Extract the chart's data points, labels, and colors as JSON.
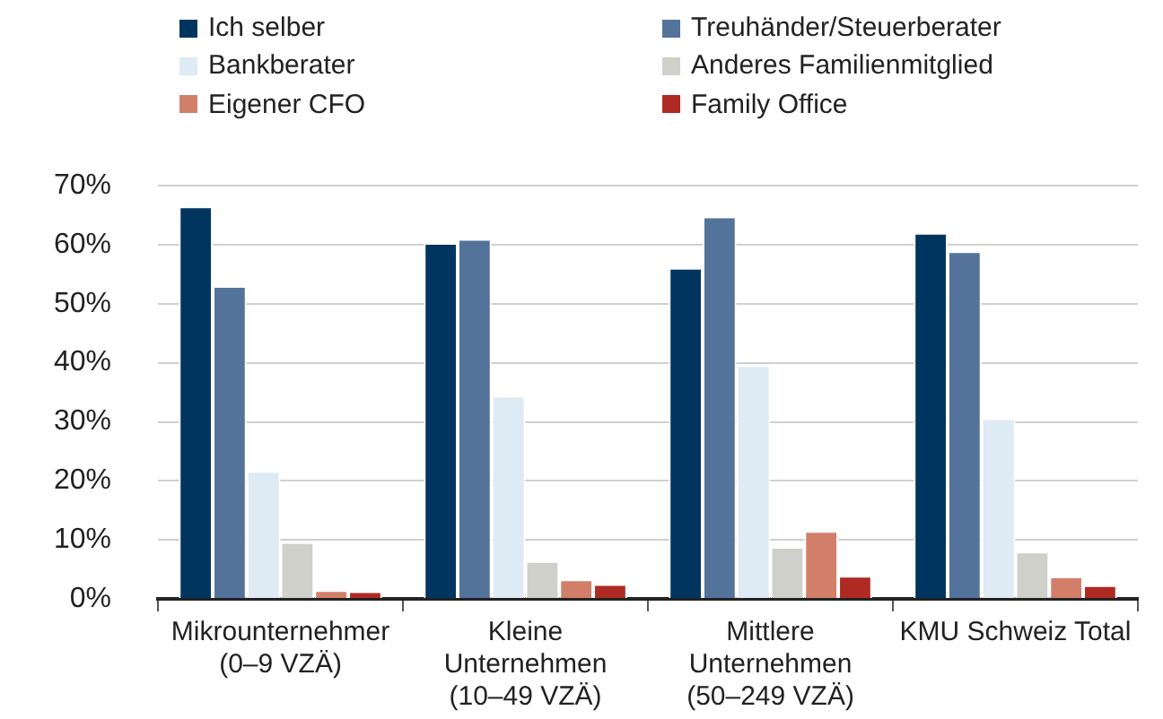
{
  "chart_data": {
    "type": "bar",
    "categories": [
      [
        "Mikrounternehmer",
        "(0–9 VZÄ)"
      ],
      [
        "Kleine",
        "Unternehmen",
        "(10–49 VZÄ)"
      ],
      [
        "Mittlere",
        "Unternehmen",
        "(50–249 VZÄ)"
      ],
      [
        "KMU Schweiz Total"
      ]
    ],
    "series": [
      {
        "name": "Ich selber",
        "color": "#00355f",
        "values": [
          66.5,
          60.3,
          56.1,
          62.0
        ]
      },
      {
        "name": "Treuhänder/Steuerberater",
        "color": "#54739a",
        "values": [
          53.0,
          61.0,
          64.8,
          58.9
        ]
      },
      {
        "name": "Bankberater",
        "color": "#deeaf4",
        "values": [
          21.7,
          34.4,
          39.6,
          30.6
        ]
      },
      {
        "name": "Anderes Familienmitglied",
        "color": "#d0d0cb",
        "values": [
          9.6,
          6.4,
          8.8,
          8.0
        ]
      },
      {
        "name": "Eigener CFO",
        "color": "#d27f6a",
        "values": [
          1.5,
          3.3,
          11.5,
          3.8
        ]
      },
      {
        "name": "Family Office",
        "color": "#ae2a22",
        "values": [
          1.3,
          2.5,
          3.9,
          2.3
        ]
      }
    ],
    "ylim": [
      0,
      70
    ],
    "yticks": [
      {
        "value": 0,
        "label": "0%"
      },
      {
        "value": 10,
        "label": "10%"
      },
      {
        "value": 20,
        "label": "20%"
      },
      {
        "value": 30,
        "label": "30%"
      },
      {
        "value": 40,
        "label": "40%"
      },
      {
        "value": 50,
        "label": "50%"
      },
      {
        "value": 60,
        "label": "60%"
      },
      {
        "value": 70,
        "label": "70%"
      }
    ],
    "grid": "y",
    "legend": "top"
  }
}
